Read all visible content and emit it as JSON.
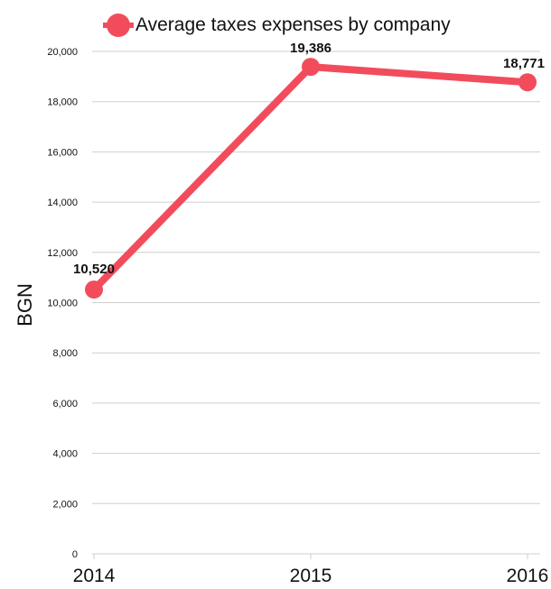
{
  "chart_data": {
    "type": "line",
    "title": "",
    "x": [
      "2014",
      "2015",
      "2016"
    ],
    "series": [
      {
        "name": "Average taxes expenses by company",
        "values": [
          10520,
          19386,
          18771
        ],
        "labels": [
          "10,520",
          "19,386",
          "18,771"
        ]
      }
    ],
    "xlabel": "",
    "ylabel": "BGN",
    "ylim": [
      0,
      20000
    ],
    "yticks": [
      0,
      2000,
      4000,
      6000,
      8000,
      10000,
      12000,
      14000,
      16000,
      18000,
      20000
    ],
    "ytick_labels": [
      "0",
      "2,000",
      "4,000",
      "6,000",
      "8,000",
      "10,000",
      "12,000",
      "14,000",
      "16,000",
      "18,000",
      "20,000"
    ],
    "grid": true,
    "legend_position": "top",
    "colors": {
      "series": "#f24c5c",
      "grid": "#cfcfcf",
      "text": "#111111"
    }
  }
}
